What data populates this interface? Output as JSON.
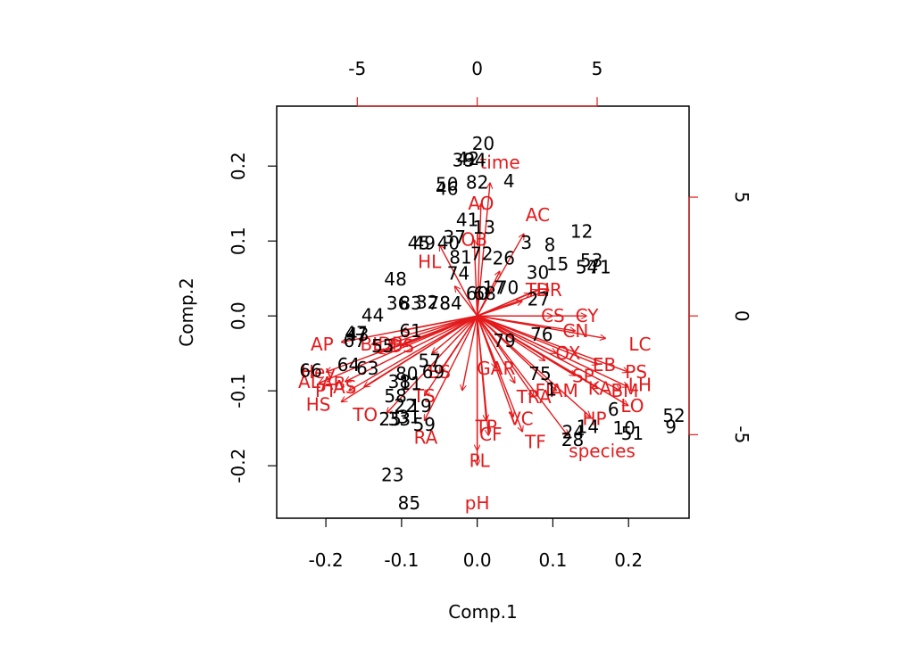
{
  "chart_data": {
    "type": "scatter",
    "subtype": "biplot",
    "title": "",
    "xlabel": "Comp.1",
    "ylabel": "Comp.2",
    "xlim": [
      -0.265,
      0.28
    ],
    "ylim": [
      -0.27,
      0.28
    ],
    "xticks": [
      "-0.2",
      "-0.1",
      "0.0",
      "0.1",
      "0.2"
    ],
    "xtick_values": [
      -0.2,
      -0.1,
      0.0,
      0.1,
      0.2
    ],
    "yticks": [
      "-0.2",
      "-0.1",
      "0.0",
      "0.1",
      "0.2"
    ],
    "ytick_values": [
      -0.2,
      -0.1,
      0.0,
      0.1,
      0.2
    ],
    "loading_axis_ticks_top": [
      "-5",
      "0",
      "5"
    ],
    "loading_axis_tick_values_top": [
      -5,
      0,
      5
    ],
    "loading_axis_ticks_right": [
      "-5",
      "0",
      "5"
    ],
    "loading_axis_tick_values_right": [
      -5,
      0,
      5
    ],
    "loading_axis_scale": 0.0317,
    "colors": {
      "observations": "#000000",
      "loadings": "#e31a1c"
    },
    "observations": [
      {
        "label": "20",
        "x": 0.008,
        "y": 0.23
      },
      {
        "label": "42",
        "x": -0.012,
        "y": 0.21
      },
      {
        "label": "34",
        "x": -0.003,
        "y": 0.208
      },
      {
        "label": "39",
        "x": -0.018,
        "y": 0.208
      },
      {
        "label": "4",
        "x": 0.042,
        "y": 0.18
      },
      {
        "label": "82",
        "x": 0.0,
        "y": 0.178
      },
      {
        "label": "50",
        "x": -0.04,
        "y": 0.176
      },
      {
        "label": "46",
        "x": -0.04,
        "y": 0.17
      },
      {
        "label": "41",
        "x": -0.013,
        "y": 0.128
      },
      {
        "label": "13",
        "x": 0.009,
        "y": 0.118
      },
      {
        "label": "3",
        "x": 0.065,
        "y": 0.098
      },
      {
        "label": "8",
        "x": 0.096,
        "y": 0.095
      },
      {
        "label": "12",
        "x": 0.138,
        "y": 0.113
      },
      {
        "label": "37",
        "x": -0.03,
        "y": 0.105
      },
      {
        "label": "45",
        "x": -0.077,
        "y": 0.097
      },
      {
        "label": "49",
        "x": -0.07,
        "y": 0.097
      },
      {
        "label": "40",
        "x": -0.038,
        "y": 0.097
      },
      {
        "label": "81",
        "x": -0.022,
        "y": 0.078
      },
      {
        "label": "72",
        "x": 0.006,
        "y": 0.083
      },
      {
        "label": "26",
        "x": 0.035,
        "y": 0.077
      },
      {
        "label": "15",
        "x": 0.106,
        "y": 0.069
      },
      {
        "label": "53",
        "x": 0.151,
        "y": 0.074
      },
      {
        "label": "54",
        "x": 0.145,
        "y": 0.065
      },
      {
        "label": "71",
        "x": 0.162,
        "y": 0.065
      },
      {
        "label": "74",
        "x": -0.025,
        "y": 0.057
      },
      {
        "label": "30",
        "x": 0.08,
        "y": 0.058
      },
      {
        "label": "48",
        "x": -0.108,
        "y": 0.049
      },
      {
        "label": "36",
        "x": -0.105,
        "y": 0.017
      },
      {
        "label": "83",
        "x": -0.088,
        "y": 0.017
      },
      {
        "label": "32",
        "x": -0.066,
        "y": 0.018
      },
      {
        "label": "78",
        "x": -0.05,
        "y": 0.017
      },
      {
        "label": "84",
        "x": -0.035,
        "y": 0.017
      },
      {
        "label": "60",
        "x": 0.0,
        "y": 0.03
      },
      {
        "label": "68",
        "x": 0.01,
        "y": 0.03
      },
      {
        "label": "17",
        "x": 0.022,
        "y": 0.038
      },
      {
        "label": "70",
        "x": 0.04,
        "y": 0.038
      },
      {
        "label": "27",
        "x": 0.081,
        "y": 0.022
      },
      {
        "label": "44",
        "x": -0.138,
        "y": 0.001
      },
      {
        "label": "61",
        "x": -0.088,
        "y": -0.02
      },
      {
        "label": "47",
        "x": -0.16,
        "y": -0.023
      },
      {
        "label": "43",
        "x": -0.158,
        "y": -0.025
      },
      {
        "label": "67",
        "x": -0.162,
        "y": -0.033
      },
      {
        "label": "55",
        "x": -0.125,
        "y": -0.04
      },
      {
        "label": "76",
        "x": 0.085,
        "y": -0.025
      },
      {
        "label": "79",
        "x": 0.036,
        "y": -0.033
      },
      {
        "label": "57",
        "x": -0.063,
        "y": -0.06
      },
      {
        "label": "64",
        "x": -0.17,
        "y": -0.065
      },
      {
        "label": "63",
        "x": -0.145,
        "y": -0.07
      },
      {
        "label": "66",
        "x": -0.22,
        "y": -0.073
      },
      {
        "label": "38",
        "x": -0.103,
        "y": -0.088
      },
      {
        "label": "11",
        "x": -0.088,
        "y": -0.09
      },
      {
        "label": "80",
        "x": -0.093,
        "y": -0.077
      },
      {
        "label": "69",
        "x": -0.058,
        "y": -0.075
      },
      {
        "label": "75",
        "x": 0.083,
        "y": -0.077
      },
      {
        "label": "1",
        "x": 0.098,
        "y": -0.098
      },
      {
        "label": "58",
        "x": -0.108,
        "y": -0.107
      },
      {
        "label": "22",
        "x": -0.095,
        "y": -0.12
      },
      {
        "label": "25",
        "x": -0.115,
        "y": -0.138
      },
      {
        "label": "33",
        "x": -0.103,
        "y": -0.138
      },
      {
        "label": "31",
        "x": -0.09,
        "y": -0.135
      },
      {
        "label": "19",
        "x": -0.075,
        "y": -0.12
      },
      {
        "label": "59",
        "x": -0.07,
        "y": -0.145
      },
      {
        "label": "6",
        "x": 0.18,
        "y": -0.125
      },
      {
        "label": "10",
        "x": 0.194,
        "y": -0.15
      },
      {
        "label": "51",
        "x": 0.205,
        "y": -0.157
      },
      {
        "label": "52",
        "x": 0.26,
        "y": -0.133
      },
      {
        "label": "9",
        "x": 0.256,
        "y": -0.148
      },
      {
        "label": "14",
        "x": 0.146,
        "y": -0.148
      },
      {
        "label": "24",
        "x": 0.127,
        "y": -0.155
      },
      {
        "label": "28",
        "x": 0.126,
        "y": -0.165
      },
      {
        "label": "23",
        "x": -0.112,
        "y": -0.212
      },
      {
        "label": "85",
        "x": -0.09,
        "y": -0.25
      }
    ],
    "loadings": [
      {
        "label": "time",
        "x": 0.017,
        "y": 0.178,
        "lx": 0.03,
        "ly": 0.205
      },
      {
        "label": "AO",
        "x": 0.005,
        "y": 0.15,
        "lx": 0.005,
        "ly": 0.15
      },
      {
        "label": "AC",
        "x": 0.062,
        "y": 0.11,
        "lx": 0.08,
        "ly": 0.135
      },
      {
        "label": "OB",
        "x": -0.004,
        "y": 0.102,
        "lx": -0.004,
        "ly": 0.102
      },
      {
        "label": "HL",
        "x": -0.05,
        "y": 0.095,
        "lx": -0.063,
        "ly": 0.072
      },
      {
        "label": "CY",
        "x": 0.145,
        "y": 0.0,
        "lx": 0.145,
        "ly": 0.0
      },
      {
        "label": "CS",
        "x": 0.1,
        "y": -0.0,
        "lx": 0.1,
        "ly": 0.0
      },
      {
        "label": "CN",
        "x": 0.13,
        "y": -0.02,
        "lx": 0.13,
        "ly": -0.02
      },
      {
        "label": "LC",
        "x": 0.17,
        "y": -0.03,
        "lx": 0.215,
        "ly": -0.038
      },
      {
        "label": "OX",
        "x": 0.105,
        "y": -0.05,
        "lx": 0.12,
        "ly": -0.05
      },
      {
        "label": "EB",
        "x": 0.16,
        "y": -0.065,
        "lx": 0.168,
        "ly": -0.065
      },
      {
        "label": "PS",
        "x": 0.2,
        "y": -0.075,
        "lx": 0.21,
        "ly": -0.075
      },
      {
        "label": "SP",
        "x": 0.13,
        "y": -0.08,
        "lx": 0.14,
        "ly": -0.08
      },
      {
        "label": "LH",
        "x": 0.2,
        "y": -0.095,
        "lx": 0.215,
        "ly": -0.092
      },
      {
        "label": "KA",
        "x": 0.16,
        "y": -0.097,
        "lx": 0.162,
        "ly": -0.097
      },
      {
        "label": "BM",
        "x": 0.19,
        "y": -0.1,
        "lx": 0.195,
        "ly": -0.1
      },
      {
        "label": "LO",
        "x": 0.2,
        "y": -0.12,
        "lx": 0.205,
        "ly": -0.12
      },
      {
        "label": "HP",
        "x": 0.15,
        "y": -0.135,
        "lx": 0.155,
        "ly": -0.137
      },
      {
        "label": "FIAM",
        "x": 0.105,
        "y": -0.1,
        "lx": 0.105,
        "ly": -0.1
      },
      {
        "label": "TRA",
        "x": 0.075,
        "y": -0.108,
        "lx": 0.075,
        "ly": -0.108
      },
      {
        "label": "GAR",
        "x": 0.025,
        "y": -0.07,
        "lx": 0.025,
        "ly": -0.07
      },
      {
        "label": "VC",
        "x": 0.048,
        "y": -0.135,
        "lx": 0.058,
        "ly": -0.137
      },
      {
        "label": "TF",
        "x": 0.06,
        "y": -0.155,
        "lx": 0.077,
        "ly": -0.168
      },
      {
        "label": "CF",
        "x": 0.015,
        "y": -0.16,
        "lx": 0.018,
        "ly": -0.158
      },
      {
        "label": "TP",
        "x": 0.012,
        "y": -0.14,
        "lx": 0.012,
        "ly": -0.148
      },
      {
        "label": "PL",
        "x": 0.0,
        "y": -0.18,
        "lx": 0.003,
        "ly": -0.193
      },
      {
        "label": "pH",
        "x": 0.0,
        "y": -0.2,
        "lx": 0.0,
        "ly": -0.25
      },
      {
        "label": "species",
        "x": 0.12,
        "y": -0.16,
        "lx": 0.165,
        "ly": -0.18
      },
      {
        "label": "RA",
        "x": -0.07,
        "y": -0.14,
        "lx": -0.068,
        "ly": -0.162
      },
      {
        "label": "TO",
        "x": -0.12,
        "y": -0.13,
        "lx": -0.148,
        "ly": -0.132
      },
      {
        "label": "HS",
        "x": -0.18,
        "y": -0.115,
        "lx": -0.21,
        "ly": -0.118
      },
      {
        "label": "PT",
        "x": -0.17,
        "y": -0.1,
        "lx": -0.2,
        "ly": -0.1
      },
      {
        "label": "AS",
        "x": -0.15,
        "y": -0.095,
        "lx": -0.175,
        "ly": -0.095
      },
      {
        "label": "AB",
        "x": -0.175,
        "y": -0.088,
        "lx": -0.19,
        "ly": -0.09
      },
      {
        "label": "AL",
        "x": -0.21,
        "y": -0.09,
        "lx": -0.222,
        "ly": -0.088
      },
      {
        "label": "Hey",
        "x": -0.2,
        "y": -0.075,
        "lx": -0.21,
        "ly": -0.075
      },
      {
        "label": "AP",
        "x": -0.18,
        "y": -0.035,
        "lx": -0.205,
        "ly": -0.038
      },
      {
        "label": "BL",
        "x": -0.14,
        "y": -0.038,
        "lx": -0.14,
        "ly": -0.038
      },
      {
        "label": "DP",
        "x": -0.115,
        "y": -0.037,
        "lx": -0.115,
        "ly": -0.037
      },
      {
        "label": "DS",
        "x": -0.1,
        "y": -0.04,
        "lx": -0.1,
        "ly": -0.04
      },
      {
        "label": "ES",
        "x": -0.05,
        "y": -0.075,
        "lx": -0.05,
        "ly": -0.075
      },
      {
        "label": "TS",
        "x": -0.07,
        "y": -0.107,
        "lx": -0.07,
        "ly": -0.107
      },
      {
        "label": "TH",
        "x": 0.08,
        "y": 0.035,
        "lx": 0.08,
        "ly": 0.035
      },
      {
        "label": "DR",
        "x": 0.095,
        "y": 0.035,
        "lx": 0.095,
        "ly": 0.035
      },
      {
        "label": "",
        "x": 0.06,
        "y": 0.02
      },
      {
        "label": "",
        "x": 0.07,
        "y": 0.03
      },
      {
        "label": "",
        "x": -0.1,
        "y": -0.02
      },
      {
        "label": "",
        "x": -0.13,
        "y": -0.05
      },
      {
        "label": "",
        "x": -0.06,
        "y": -0.05
      },
      {
        "label": "",
        "x": 0.05,
        "y": -0.09
      },
      {
        "label": "",
        "x": 0.09,
        "y": -0.06
      },
      {
        "label": "",
        "x": -0.03,
        "y": 0.04
      },
      {
        "label": "",
        "x": 0.03,
        "y": 0.06
      },
      {
        "label": "",
        "x": -0.02,
        "y": -0.1
      }
    ]
  }
}
